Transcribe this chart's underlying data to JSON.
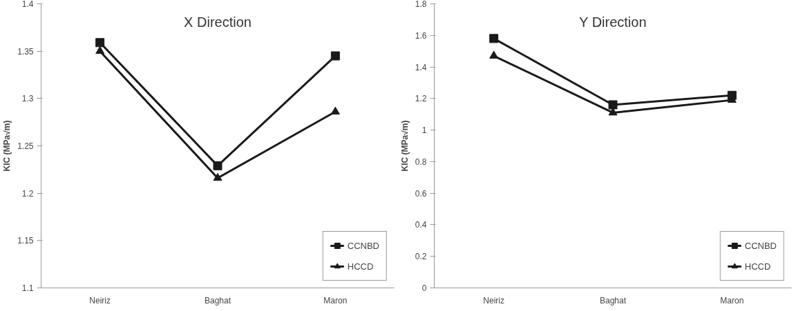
{
  "chart_data": [
    {
      "type": "line",
      "title": "X Direction",
      "ylabel": "KIC (MPa√m)",
      "categories": [
        "Neiriz",
        "Baghat",
        "Maron"
      ],
      "ylim": [
        1.1,
        1.4
      ],
      "yticks": [
        1.1,
        1.15,
        1.2,
        1.25,
        1.3,
        1.35,
        1.4
      ],
      "grid": false,
      "legend": "bottom right",
      "series": [
        {
          "name": "CCNBD",
          "color": "#1a1a1a",
          "marker": "square",
          "values": [
            1.359,
            1.229,
            1.345
          ]
        },
        {
          "name": "HCCD",
          "color": "#1a1a1a",
          "marker": "triangle",
          "values": [
            1.35,
            1.216,
            1.286
          ]
        }
      ]
    },
    {
      "type": "line",
      "title": "Y Direction",
      "ylabel": "KIC (MPa√m)",
      "categories": [
        "Neiriz",
        "Baghat",
        "Maron"
      ],
      "ylim": [
        0,
        1.8
      ],
      "yticks": [
        0,
        0.2,
        0.4,
        0.6,
        0.8,
        1,
        1.2,
        1.4,
        1.6,
        1.8
      ],
      "grid": false,
      "legend": "bottom right",
      "series": [
        {
          "name": "CCNBD",
          "color": "#1a1a1a",
          "marker": "square",
          "values": [
            1.58,
            1.16,
            1.22
          ]
        },
        {
          "name": "HCCD",
          "color": "#1a1a1a",
          "marker": "triangle",
          "values": [
            1.47,
            1.11,
            1.19
          ]
        }
      ]
    }
  ]
}
